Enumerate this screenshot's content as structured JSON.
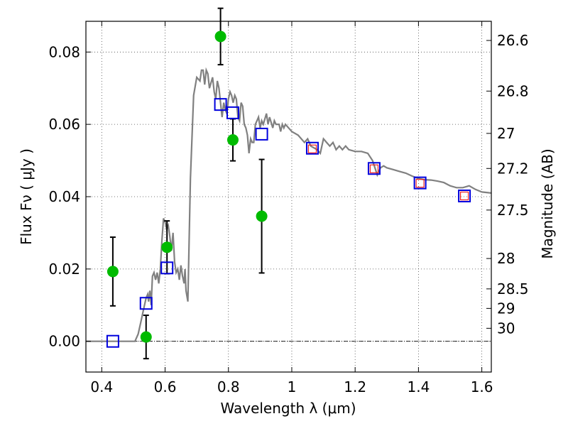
{
  "chart_data": {
    "type": "scatter",
    "xlabel": "Wavelength  λ (μm)",
    "ylabel": "Flux  Fν  ( μJy )",
    "y2label": "Magnitude (AB)",
    "xlim": [
      0.35,
      1.63
    ],
    "ylim": [
      -0.0085,
      0.0885
    ],
    "x_ticks": [
      0.4,
      0.6,
      0.8,
      1.0,
      1.2,
      1.4,
      1.6
    ],
    "x_tick_labels": [
      "0.4",
      "0.6",
      "0.8",
      "1",
      "1.2",
      "1.4",
      "1.6"
    ],
    "y_ticks": [
      0.0,
      0.02,
      0.04,
      0.06,
      0.08
    ],
    "y_tick_labels": [
      "0.00",
      "0.02",
      "0.04",
      "0.06",
      "0.08"
    ],
    "mag_ticks": [
      {
        "label": "26.6",
        "flux": 0.0832
      },
      {
        "label": "26.8",
        "flux": 0.0692
      },
      {
        "label": "27",
        "flux": 0.0575
      },
      {
        "label": "27.2",
        "flux": 0.0478
      },
      {
        "label": "27.5",
        "flux": 0.0363
      },
      {
        "label": "28",
        "flux": 0.0229
      },
      {
        "label": "28.5",
        "flux": 0.0145
      },
      {
        "label": "29",
        "flux": 0.0091
      },
      {
        "label": "30",
        "flux": 0.0036
      }
    ],
    "series": [
      {
        "name": "model spectrum",
        "kind": "line",
        "color": "#808080",
        "points": [
          [
            0.35,
            0.0
          ],
          [
            0.505,
            0.0
          ],
          [
            0.515,
            0.002
          ],
          [
            0.525,
            0.006
          ],
          [
            0.53,
            0.008
          ],
          [
            0.535,
            0.01
          ],
          [
            0.54,
            0.012
          ],
          [
            0.545,
            0.013
          ],
          [
            0.548,
            0.011
          ],
          [
            0.552,
            0.014
          ],
          [
            0.556,
            0.01
          ],
          [
            0.56,
            0.018
          ],
          [
            0.565,
            0.019
          ],
          [
            0.57,
            0.017
          ],
          [
            0.575,
            0.019
          ],
          [
            0.58,
            0.016
          ],
          [
            0.585,
            0.02
          ],
          [
            0.59,
            0.028
          ],
          [
            0.595,
            0.034
          ],
          [
            0.6,
            0.033
          ],
          [
            0.605,
            0.031
          ],
          [
            0.61,
            0.032
          ],
          [
            0.615,
            0.029
          ],
          [
            0.62,
            0.025
          ],
          [
            0.625,
            0.03
          ],
          [
            0.63,
            0.022
          ],
          [
            0.635,
            0.019
          ],
          [
            0.64,
            0.02
          ],
          [
            0.645,
            0.017
          ],
          [
            0.65,
            0.021
          ],
          [
            0.655,
            0.018
          ],
          [
            0.66,
            0.016
          ],
          [
            0.663,
            0.02
          ],
          [
            0.666,
            0.014
          ],
          [
            0.672,
            0.011
          ],
          [
            0.68,
            0.045
          ],
          [
            0.69,
            0.068
          ],
          [
            0.7,
            0.073
          ],
          [
            0.71,
            0.072
          ],
          [
            0.715,
            0.075
          ],
          [
            0.72,
            0.075
          ],
          [
            0.725,
            0.071
          ],
          [
            0.73,
            0.075
          ],
          [
            0.735,
            0.074
          ],
          [
            0.74,
            0.07
          ],
          [
            0.75,
            0.073
          ],
          [
            0.755,
            0.069
          ],
          [
            0.76,
            0.067
          ],
          [
            0.765,
            0.072
          ],
          [
            0.77,
            0.07
          ],
          [
            0.775,
            0.066
          ],
          [
            0.78,
            0.062
          ],
          [
            0.785,
            0.066
          ],
          [
            0.79,
            0.064
          ],
          [
            0.795,
            0.063
          ],
          [
            0.8,
            0.067
          ],
          [
            0.805,
            0.069
          ],
          [
            0.81,
            0.068
          ],
          [
            0.815,
            0.066
          ],
          [
            0.82,
            0.068
          ],
          [
            0.825,
            0.067
          ],
          [
            0.83,
            0.062
          ],
          [
            0.835,
            0.061
          ],
          [
            0.84,
            0.066
          ],
          [
            0.845,
            0.065
          ],
          [
            0.85,
            0.06
          ],
          [
            0.855,
            0.059
          ],
          [
            0.86,
            0.057
          ],
          [
            0.865,
            0.052
          ],
          [
            0.87,
            0.056
          ],
          [
            0.875,
            0.055
          ],
          [
            0.88,
            0.055
          ],
          [
            0.885,
            0.06
          ],
          [
            0.89,
            0.061
          ],
          [
            0.895,
            0.062
          ],
          [
            0.9,
            0.059
          ],
          [
            0.905,
            0.061
          ],
          [
            0.91,
            0.06
          ],
          [
            0.92,
            0.063
          ],
          [
            0.925,
            0.06
          ],
          [
            0.93,
            0.062
          ],
          [
            0.94,
            0.059
          ],
          [
            0.945,
            0.061
          ],
          [
            0.95,
            0.06
          ],
          [
            0.96,
            0.06
          ],
          [
            0.965,
            0.058
          ],
          [
            0.97,
            0.06
          ],
          [
            0.975,
            0.059
          ],
          [
            0.98,
            0.06
          ],
          [
            0.99,
            0.059
          ],
          [
            1.0,
            0.058
          ],
          [
            1.02,
            0.057
          ],
          [
            1.04,
            0.055
          ],
          [
            1.05,
            0.056
          ],
          [
            1.06,
            0.054
          ],
          [
            1.08,
            0.053
          ],
          [
            1.09,
            0.052
          ],
          [
            1.1,
            0.056
          ],
          [
            1.11,
            0.055
          ],
          [
            1.12,
            0.054
          ],
          [
            1.13,
            0.055
          ],
          [
            1.14,
            0.053
          ],
          [
            1.15,
            0.054
          ],
          [
            1.16,
            0.053
          ],
          [
            1.17,
            0.054
          ],
          [
            1.18,
            0.053
          ],
          [
            1.2,
            0.0525
          ],
          [
            1.22,
            0.0525
          ],
          [
            1.24,
            0.052
          ],
          [
            1.255,
            0.05
          ],
          [
            1.27,
            0.046
          ],
          [
            1.28,
            0.048
          ],
          [
            1.29,
            0.0485
          ],
          [
            1.3,
            0.048
          ],
          [
            1.32,
            0.0475
          ],
          [
            1.34,
            0.047
          ],
          [
            1.36,
            0.0465
          ],
          [
            1.38,
            0.0457
          ],
          [
            1.4,
            0.045
          ],
          [
            1.42,
            0.0447
          ],
          [
            1.44,
            0.0446
          ],
          [
            1.46,
            0.0443
          ],
          [
            1.48,
            0.0439
          ],
          [
            1.5,
            0.043
          ],
          [
            1.52,
            0.0425
          ],
          [
            1.54,
            0.0425
          ],
          [
            1.56,
            0.043
          ],
          [
            1.58,
            0.042
          ],
          [
            1.6,
            0.0413
          ],
          [
            1.63,
            0.041
          ]
        ]
      },
      {
        "name": "observed photometry",
        "kind": "scatter_errorbar",
        "color": "#00bb00",
        "points": [
          {
            "x": 0.435,
            "y": 0.0193,
            "err_lo": 0.0095,
            "err_hi": 0.0095
          },
          {
            "x": 0.54,
            "y": 0.0012,
            "err_lo": 0.006,
            "err_hi": 0.006
          },
          {
            "x": 0.606,
            "y": 0.026,
            "err_lo": 0.0073,
            "err_hi": 0.0073
          },
          {
            "x": 0.775,
            "y": 0.0843,
            "err_lo": 0.0078,
            "err_hi": 0.0078
          },
          {
            "x": 0.814,
            "y": 0.0557,
            "err_lo": 0.0058,
            "err_hi": 0.0058
          },
          {
            "x": 0.905,
            "y": 0.0346,
            "err_lo": 0.0157,
            "err_hi": 0.0157
          }
        ]
      },
      {
        "name": "model photometry",
        "kind": "scatter_square",
        "color": "#0000dd",
        "points": [
          [
            0.435,
            0.0
          ],
          [
            0.54,
            0.0105
          ],
          [
            0.606,
            0.0203
          ],
          [
            0.775,
            0.0655
          ],
          [
            0.814,
            0.0632
          ],
          [
            0.905,
            0.0573
          ],
          [
            1.065,
            0.0534
          ],
          [
            1.26,
            0.0478
          ],
          [
            1.405,
            0.0438
          ],
          [
            1.545,
            0.0402
          ]
        ]
      },
      {
        "name": "infrared points",
        "kind": "scatter_square_small",
        "color": "#ee2222",
        "points": [
          [
            1.065,
            0.0532
          ],
          [
            1.26,
            0.0477
          ],
          [
            1.405,
            0.0437
          ],
          [
            1.545,
            0.0402
          ]
        ]
      }
    ]
  }
}
